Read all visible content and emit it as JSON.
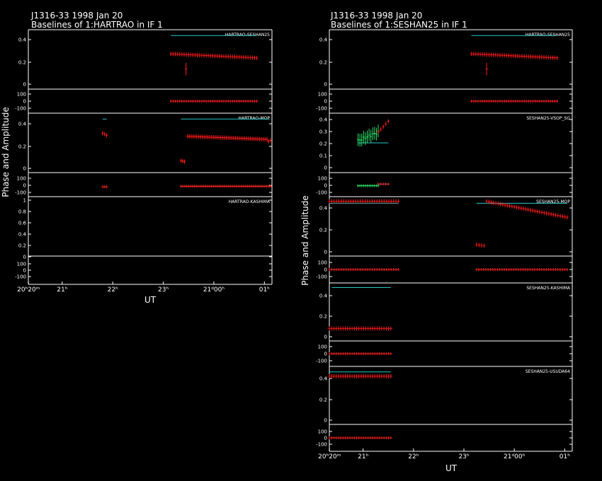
{
  "colors": {
    "background": "#000000",
    "frame": "#ffffff",
    "amplitude": "#ff1a1a",
    "model": "#29c7c7",
    "alt_data": "#2be06a"
  },
  "left": {
    "title_line1": "J1316-33  1998 Jan 20",
    "title_line2": "Baselines of 1:HARTRAO in IF 1",
    "ylabel": "Phase and Amplitude",
    "xlabel": "UT",
    "time_ticks": [
      "20ʰ20ᵐ",
      "21ʰ",
      "22ʰ",
      "23ʰ",
      "21ᵈ00ʰ",
      "01ʰ"
    ],
    "panels": [
      {
        "label": "HARTRAO-SESHAN25",
        "amp_ticks": [
          "0.4",
          "0.2",
          "0"
        ],
        "phase_ticks": [
          "100",
          "0",
          "-100"
        ]
      },
      {
        "label": "HARTRAO-MOP",
        "amp_ticks": [
          "0.4",
          "0.2",
          "0"
        ],
        "phase_ticks": [
          "100",
          "0",
          "-100"
        ]
      },
      {
        "label": "HARTRAO-KASHIMA",
        "amp_ticks": [
          "1",
          "0.8",
          "0.6",
          "0.4",
          "0.2",
          "0"
        ],
        "phase_ticks": [
          "100",
          "0",
          "-100"
        ]
      }
    ]
  },
  "right": {
    "title_line1": "J1316-33  1998 Jan 20",
    "title_line2": "Baselines of 1:SESHAN25 in IF 1",
    "ylabel": "Phase and Amplitude",
    "xlabel": "UT",
    "time_ticks": [
      "20ʰ20ᵐ",
      "21ʰ",
      "22ʰ",
      "23ʰ",
      "21ᵈ00ʰ",
      "01ʰ"
    ],
    "panels": [
      {
        "label": "HARTRAO-SESHAN25",
        "amp_ticks": [
          "0.4",
          "0.2",
          "0"
        ],
        "phase_ticks": [
          "100",
          "0",
          "-100"
        ]
      },
      {
        "label": "SESHAN25-VSOP_SG",
        "amp_ticks": [
          "0.4",
          "0.3",
          "0.2",
          "0.1",
          "0"
        ],
        "phase_ticks": [
          "100",
          "0",
          "-100"
        ]
      },
      {
        "label": "SESHAN25-MOP",
        "amp_ticks": [
          "0.4",
          "0.2",
          "0"
        ],
        "phase_ticks": [
          "100",
          "0",
          "-100"
        ]
      },
      {
        "label": "SESHAN25-KASHIMA",
        "amp_ticks": [
          "0.4",
          "0.2",
          "0"
        ],
        "phase_ticks": [
          "100",
          "0",
          "-100"
        ]
      },
      {
        "label": "SESHAN25-USUDA64",
        "amp_ticks": [
          "0.4",
          "0.2",
          "0"
        ],
        "phase_ticks": [
          "100",
          "0",
          "-100"
        ]
      }
    ]
  },
  "chart_data": [
    {
      "type": "scatter",
      "title": "J1316-33  1998 Jan 20 / Baselines of 1:HARTRAO in IF 1",
      "xlabel": "UT",
      "ylabel": "Phase and Amplitude",
      "x_unit": "hours UT on 1998 Jan 20 (24+ = Jan 21)",
      "xlim": [
        20.33,
        25.15
      ],
      "baselines": [
        {
          "name": "HARTRAO-SESHAN25",
          "amp_ylim": [
            -0.05,
            0.48
          ],
          "phase_ylim": [
            -180,
            180
          ],
          "amplitude": {
            "start": 23.15,
            "end": 24.85,
            "v0": 0.27,
            "v1": 0.23,
            "points": 40,
            "outliers": [
              [
                23.45,
                0.12
              ]
            ]
          },
          "model_amp": {
            "start": 23.15,
            "end": 24.85,
            "value": 0.45
          },
          "phase": {
            "start": 23.15,
            "end": 24.85,
            "value": 0,
            "points": 40
          }
        },
        {
          "name": "HARTRAO-MOP",
          "amp_ylim": [
            -0.05,
            0.48
          ],
          "phase_ylim": [
            -180,
            180
          ],
          "amplitude_segments": [
            {
              "start": 21.8,
              "end": 21.88,
              "v0": 0.31,
              "v1": 0.29,
              "points": 3
            },
            {
              "start": 23.35,
              "end": 23.42,
              "v0": 0.04,
              "v1": 0.03,
              "points": 3
            },
            {
              "start": 23.48,
              "end": 25.05,
              "v0": 0.28,
              "v1": 0.25,
              "points": 44
            },
            {
              "start": 25.08,
              "end": 25.12,
              "v0": 0.23,
              "v1": 0.24,
              "points": 2
            }
          ],
          "model_amp": [
            {
              "start": 21.8,
              "end": 21.88,
              "value": 0.45
            },
            {
              "start": 23.35,
              "end": 25.1,
              "value": 0.45
            }
          ],
          "phase": [
            {
              "start": 21.8,
              "end": 21.88,
              "value": -40,
              "points": 3
            },
            {
              "start": 23.35,
              "end": 25.12,
              "value": -30,
              "points": 48
            }
          ]
        },
        {
          "name": "HARTRAO-KASHIMA",
          "amp_ylim": [
            -0.05,
            1.0
          ],
          "phase_ylim": [
            -180,
            180
          ]
        }
      ]
    },
    {
      "type": "scatter",
      "title": "J1316-33  1998 Jan 20 / Baselines of 1:SESHAN25 in IF 1",
      "xlabel": "UT",
      "ylabel": "Phase and Amplitude",
      "x_unit": "hours UT on 1998 Jan 20 (24+ = Jan 21)",
      "xlim": [
        20.33,
        25.15
      ],
      "baselines": [
        {
          "name": "HARTRAO-SESHAN25",
          "amp_ylim": [
            -0.05,
            0.48
          ],
          "phase_ylim": [
            -180,
            180
          ],
          "amplitude": {
            "start": 23.15,
            "end": 24.85,
            "v0": 0.27,
            "v1": 0.23,
            "points": 40,
            "outliers": [
              [
                23.45,
                0.12
              ]
            ]
          },
          "model_amp": {
            "start": 23.15,
            "end": 24.85,
            "value": 0.45
          },
          "phase": {
            "start": 23.15,
            "end": 24.85,
            "value": 0,
            "points": 40
          }
        },
        {
          "name": "SESHAN25-VSOP_SG",
          "amp_ylim": [
            -0.05,
            0.45
          ],
          "phase_ylim": [
            -180,
            180
          ],
          "amplitude_alt": {
            "start": 20.9,
            "end": 21.3,
            "v0": 0.22,
            "v1": 0.3,
            "points": 12
          },
          "amplitude": {
            "start": 21.3,
            "end": 21.5,
            "v0": 0.3,
            "v1": 0.4,
            "points": 5
          },
          "model_amp": {
            "start": 20.9,
            "end": 21.5,
            "value": 0.2
          },
          "phase_alt": {
            "start": 20.9,
            "end": 21.3,
            "value": -20,
            "points": 12
          },
          "phase": {
            "start": 21.3,
            "end": 21.5,
            "value": 10,
            "points": 5
          }
        },
        {
          "name": "SESHAN25-MOP",
          "amp_ylim": [
            -0.05,
            0.52
          ],
          "phase_ylim": [
            -180,
            180
          ],
          "amplitude": [
            {
              "start": 20.33,
              "end": 21.7,
              "v0": 0.5,
              "v1": 0.5,
              "points": 30
            },
            {
              "start": 23.25,
              "end": 23.4,
              "v0": 0.04,
              "v1": 0.03,
              "points": 4
            },
            {
              "start": 23.45,
              "end": 25.05,
              "v0": 0.5,
              "v1": 0.33,
              "points": 36
            }
          ],
          "model_amp": [
            {
              "start": 20.33,
              "end": 21.7,
              "value": 0.48
            },
            {
              "start": 23.25,
              "end": 25.05,
              "value": 0.48
            }
          ],
          "phase": [
            {
              "start": 20.33,
              "end": 21.7,
              "value": 0,
              "points": 30
            },
            {
              "start": 23.25,
              "end": 25.05,
              "value": 0,
              "points": 40
            }
          ]
        },
        {
          "name": "SESHAN25-KASHIMA",
          "amp_ylim": [
            -0.05,
            0.55
          ],
          "phase_ylim": [
            -180,
            180
          ],
          "amplitude": {
            "start": 20.33,
            "end": 21.55,
            "v0": 0.06,
            "v1": 0.06,
            "points": 28
          },
          "model_amp": {
            "start": 20.38,
            "end": 21.55,
            "value": 0.53
          },
          "phase": {
            "start": 20.33,
            "end": 21.55,
            "value": 0,
            "points": 28
          }
        },
        {
          "name": "SESHAN25-USUDA64",
          "amp_ylim": [
            -0.05,
            0.55
          ],
          "phase_ylim": [
            -180,
            180
          ],
          "amplitude": {
            "start": 20.33,
            "end": 21.55,
            "v0": 0.47,
            "v1": 0.47,
            "points": 28
          },
          "model_amp": {
            "start": 20.33,
            "end": 21.55,
            "value": 0.52
          },
          "phase": {
            "start": 20.33,
            "end": 21.55,
            "value": 0,
            "points": 28
          }
        }
      ]
    }
  ]
}
